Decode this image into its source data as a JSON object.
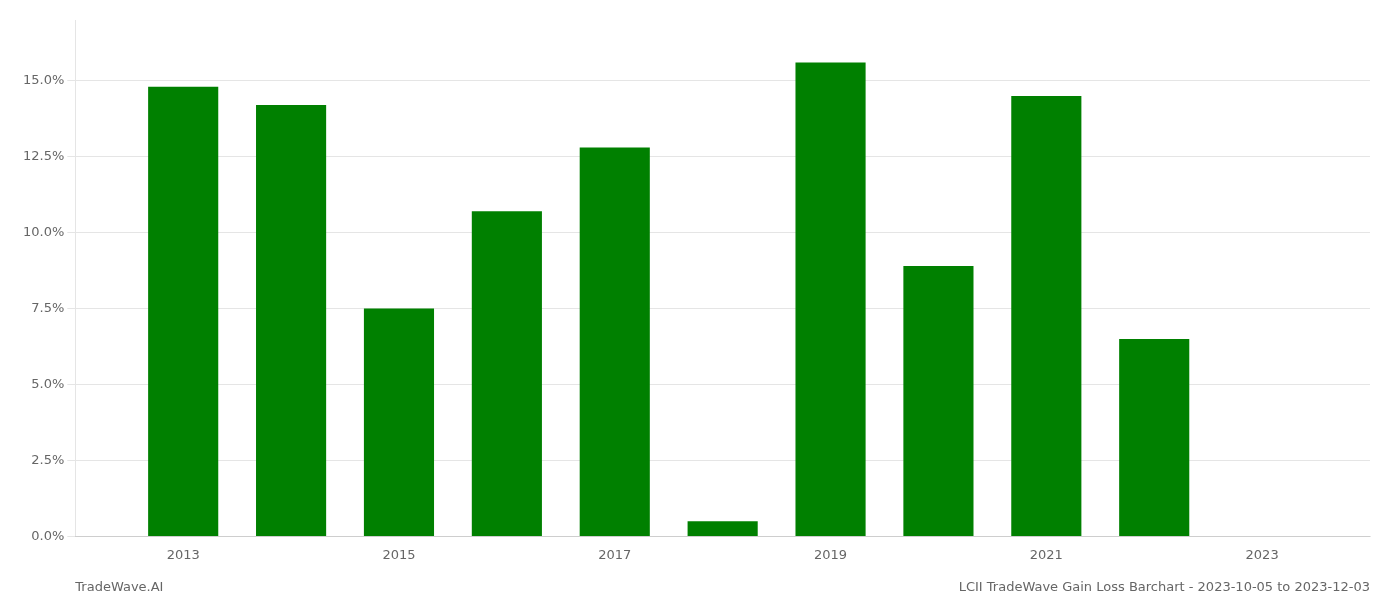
{
  "chart_data": {
    "type": "bar",
    "x": [
      2013,
      2014,
      2015,
      2016,
      2017,
      2018,
      2019,
      2020,
      2021,
      2022
    ],
    "values": [
      0.148,
      0.142,
      0.075,
      0.107,
      0.128,
      0.005,
      0.156,
      0.089,
      0.145,
      0.065
    ],
    "color": "#008000",
    "xlim": [
      2012,
      2024
    ],
    "xticks": [
      2013,
      2015,
      2017,
      2019,
      2021,
      2023
    ],
    "ylim": [
      0,
      0.17
    ],
    "yticks": [
      {
        "value": 0.0,
        "label": "0.0%"
      },
      {
        "value": 0.025,
        "label": "2.5%"
      },
      {
        "value": 0.05,
        "label": "5.0%"
      },
      {
        "value": 0.075,
        "label": "7.5%"
      },
      {
        "value": 0.1,
        "label": "10.0%"
      },
      {
        "value": 0.125,
        "label": "12.5%"
      },
      {
        "value": 0.15,
        "label": "15.0%"
      }
    ],
    "grid": true,
    "annotations": [
      "TradeWave.AI",
      "LCII TradeWave Gain Loss Barchart - 2023-10-05 to 2023-12-03"
    ]
  }
}
